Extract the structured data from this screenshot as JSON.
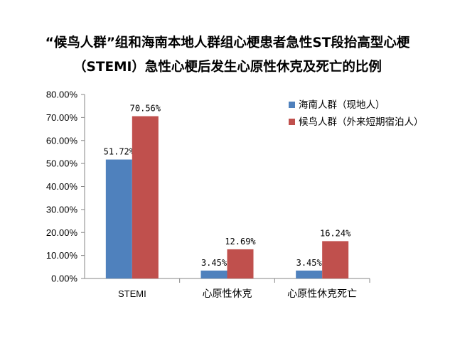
{
  "chart_data": {
    "type": "bar",
    "title": "“候鸟人群”组和海南本地人群组心梗患者急性ST段抬高型心梗",
    "subtitle": "（STEMI）急性心梗后发生心原性休克及死亡的比例",
    "categories": [
      "STEMI",
      "心原性休克",
      "心原性休克死亡"
    ],
    "series": [
      {
        "name": "海南人群（现地人）",
        "color": "#4f81bd",
        "values": [
          51.72,
          3.45,
          3.45
        ],
        "labels": [
          "51.72%",
          "3.45%",
          "3.45%"
        ]
      },
      {
        "name": "候鸟人群（外来短期宿泊人）",
        "color": "#c0504d",
        "values": [
          70.56,
          12.69,
          16.24
        ],
        "labels": [
          "70.56%",
          "12.69%",
          "16.24%"
        ]
      }
    ],
    "ylim": [
      0,
      80
    ],
    "yticks": [
      "0.00%",
      "10.00%",
      "20.00%",
      "30.00%",
      "40.00%",
      "50.00%",
      "60.00%",
      "70.00%",
      "80.00%"
    ],
    "xlabel": "",
    "ylabel": "",
    "grid": false,
    "legend_position": "top-right"
  }
}
